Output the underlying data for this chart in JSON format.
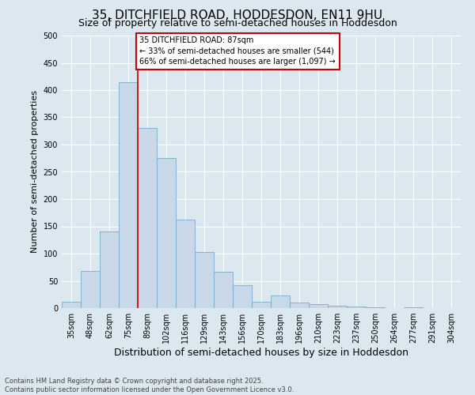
{
  "title": "35, DITCHFIELD ROAD, HODDESDON, EN11 9HU",
  "subtitle": "Size of property relative to semi-detached houses in Hoddesdon",
  "xlabel": "Distribution of semi-detached houses by size in Hoddesdon",
  "ylabel": "Number of semi-detached properties",
  "categories": [
    "35sqm",
    "48sqm",
    "62sqm",
    "75sqm",
    "89sqm",
    "102sqm",
    "116sqm",
    "129sqm",
    "143sqm",
    "156sqm",
    "170sqm",
    "183sqm",
    "196sqm",
    "210sqm",
    "223sqm",
    "237sqm",
    "250sqm",
    "264sqm",
    "277sqm",
    "291sqm",
    "304sqm"
  ],
  "bar_heights": [
    12,
    68,
    140,
    415,
    330,
    275,
    163,
    103,
    66,
    42,
    12,
    23,
    10,
    7,
    5,
    3,
    1,
    0,
    1,
    0,
    0
  ],
  "bar_color": "#c8d8e8",
  "bar_edge_color": "#7aaac8",
  "red_line_x": 3.5,
  "annotation_text": "35 DITCHFIELD ROAD: 87sqm\n← 33% of semi-detached houses are smaller (544)\n66% of semi-detached houses are larger (1,097) →",
  "annotation_box_facecolor": "#ffffff",
  "annotation_box_edgecolor": "#cc0000",
  "ylim": [
    0,
    500
  ],
  "yticks": [
    0,
    50,
    100,
    150,
    200,
    250,
    300,
    350,
    400,
    450,
    500
  ],
  "background_color": "#dce8f0",
  "red_line_color": "#cc0000",
  "footer_text": "Contains HM Land Registry data © Crown copyright and database right 2025.\nContains public sector information licensed under the Open Government Licence v3.0.",
  "title_fontsize": 11,
  "subtitle_fontsize": 9,
  "ylabel_fontsize": 8,
  "xlabel_fontsize": 9,
  "tick_fontsize": 7,
  "annot_fontsize": 7,
  "footer_fontsize": 6
}
